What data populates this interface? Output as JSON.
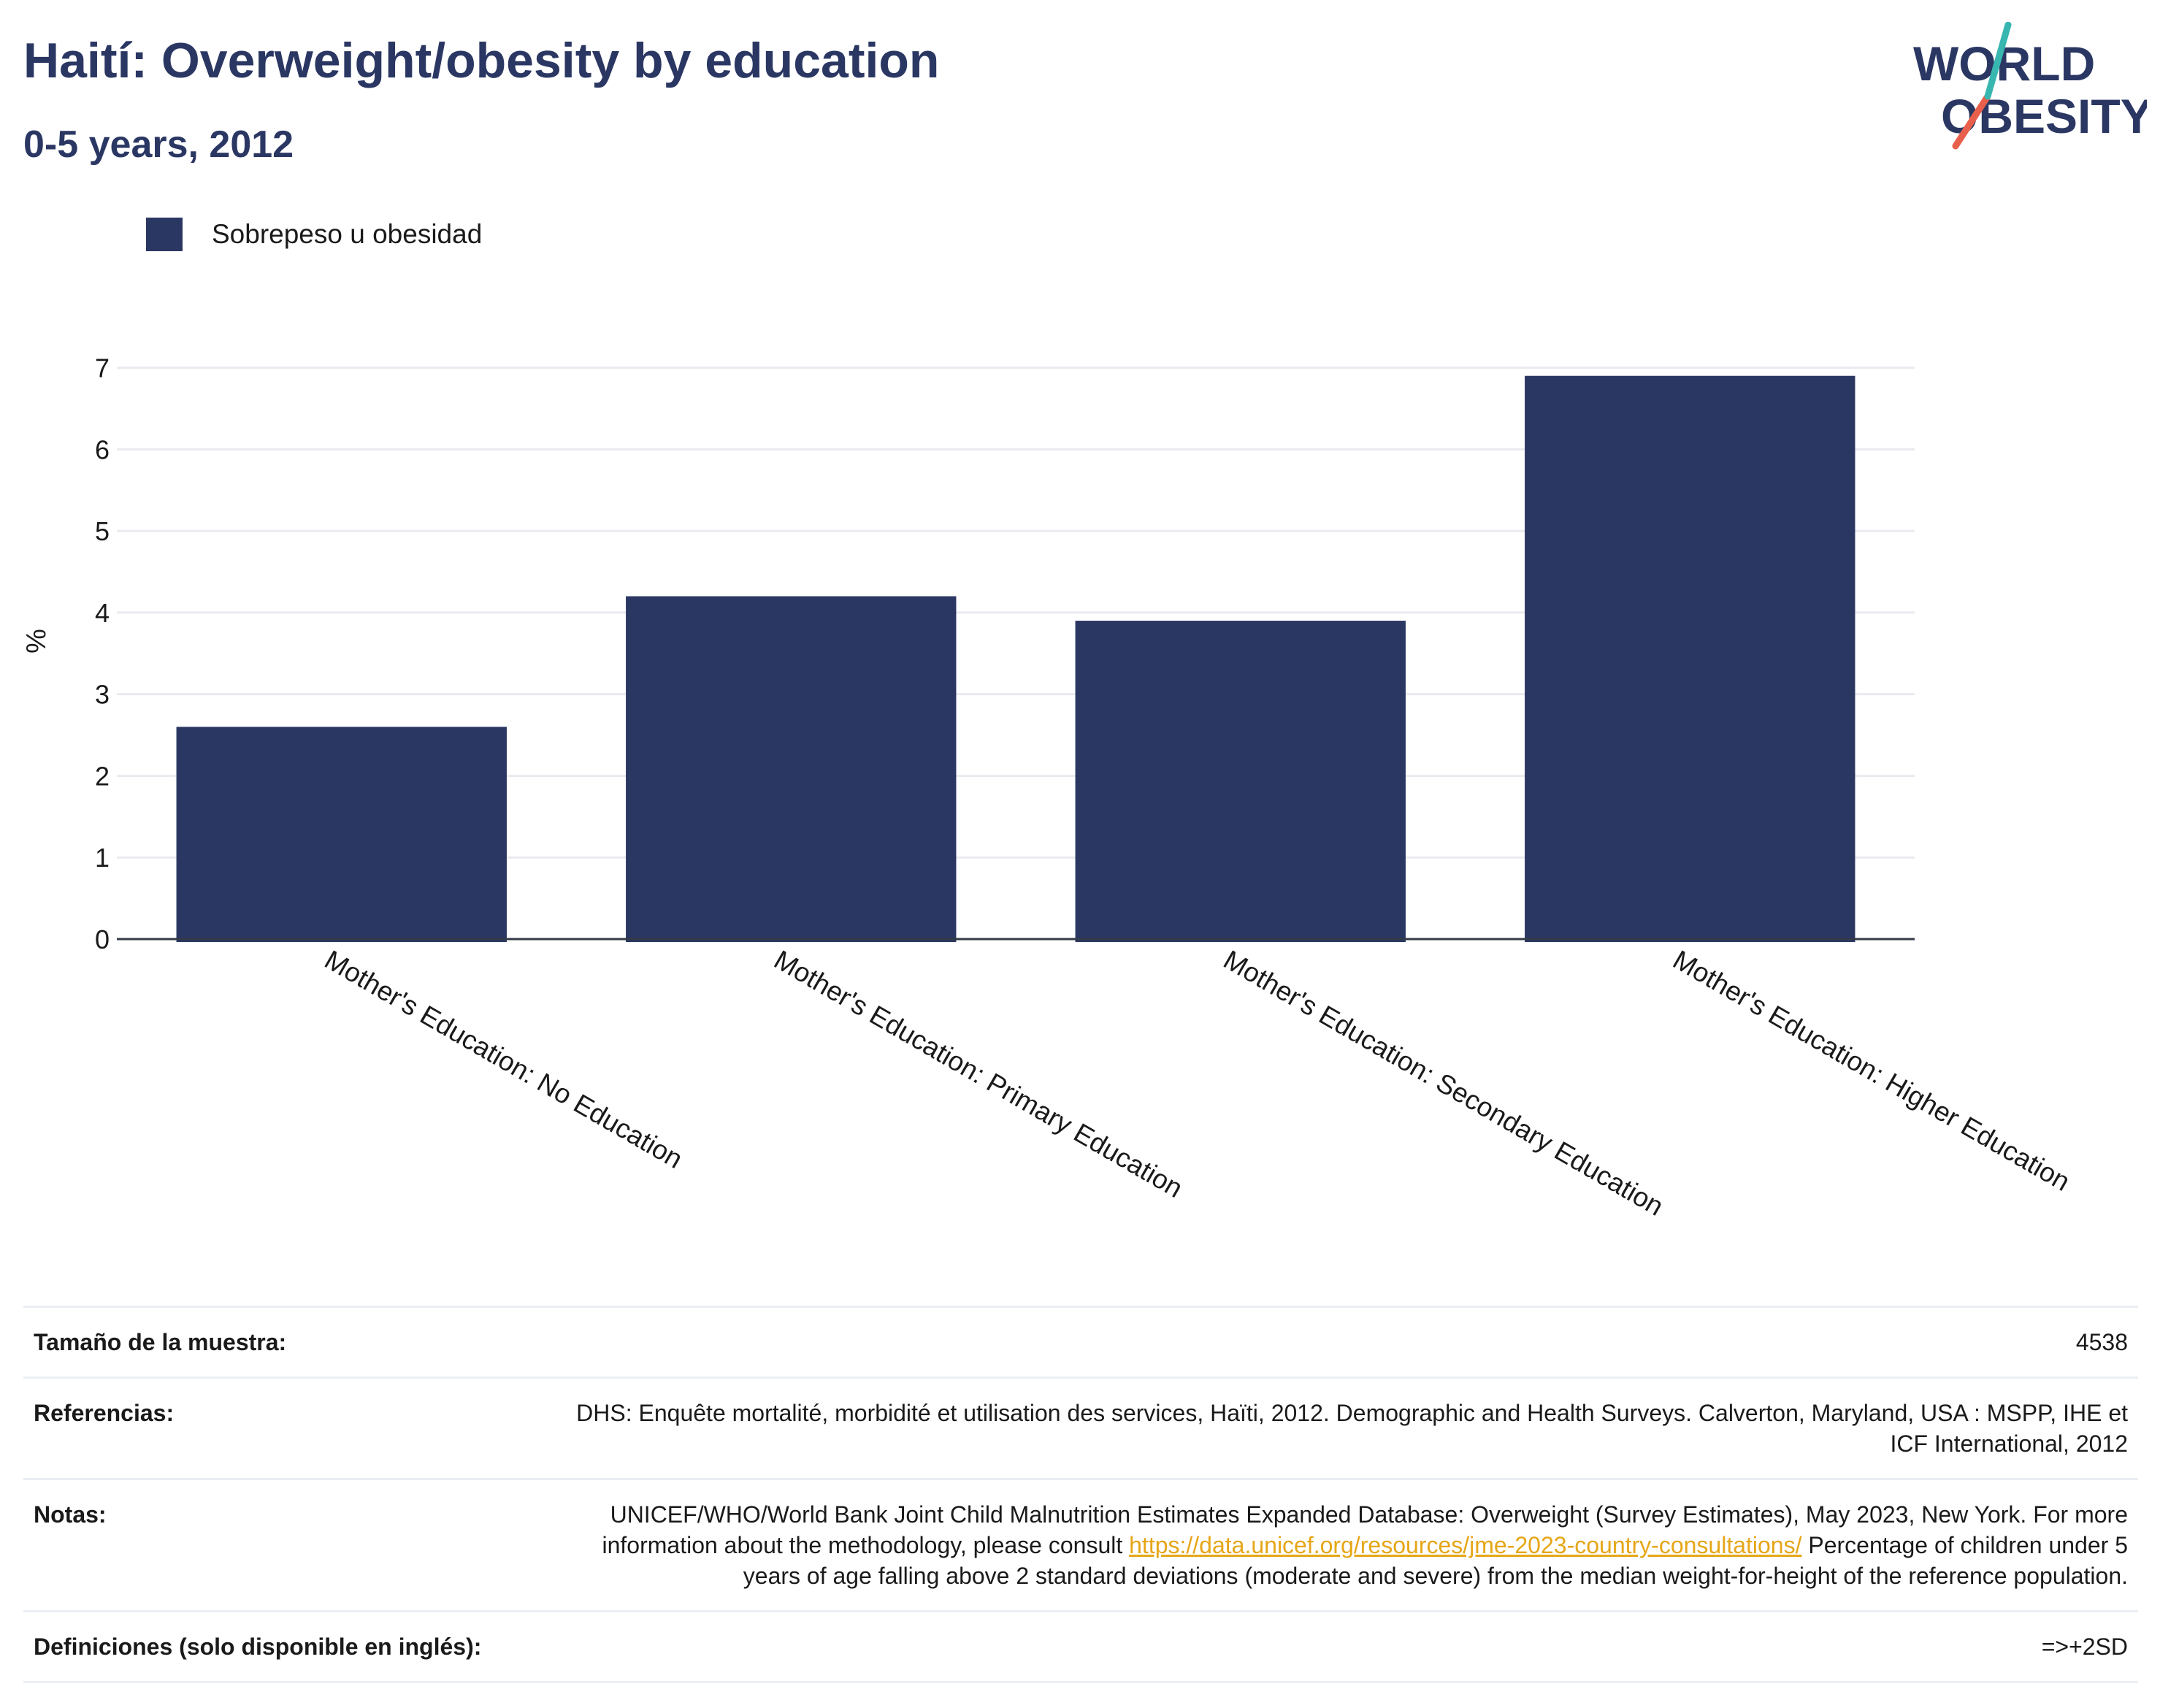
{
  "header": {
    "title": "Haití: Overweight/obesity by education",
    "subtitle": "0-5 years, 2012"
  },
  "logo": {
    "line1": "WORLD",
    "line2": "OBESITY"
  },
  "legend": {
    "label": "Sobrepeso u obesidad",
    "color": "#2b3763"
  },
  "chart_data": {
    "type": "bar",
    "categories": [
      "Mother's Education: No Education",
      "Mother's Education: Primary Education",
      "Mother's Education: Secondary Education",
      "Mother's Education: Higher Education"
    ],
    "series": [
      {
        "name": "Sobrepeso u obesidad",
        "values": [
          2.6,
          4.2,
          3.9,
          6.9
        ],
        "color": "#2b3763"
      }
    ],
    "ylabel": "%",
    "ylim": [
      0,
      7.3
    ],
    "yticks": [
      0,
      1,
      2,
      3,
      4,
      5,
      6,
      7
    ],
    "grid": true,
    "legend_position": "top-left"
  },
  "info": {
    "sample_label": "Tamaño de la muestra:",
    "sample_value": "4538",
    "refs_label": "Referencias:",
    "refs_value": "DHS: Enquête mortalité, morbidité et utilisation des services, Haïti, 2012. Demographic and Health Surveys. Calverton, Maryland, USA : MSPP, IHE et ICF International, 2012",
    "notes_label": "Notas:",
    "notes_text1": "UNICEF/WHO/World Bank Joint Child Malnutrition Estimates Expanded Database: Overweight (Survey Estimates), May 2023, New York. For more information about the methodology, please consult ",
    "notes_link": "https://data.unicef.org/resources/jme-2023-country-consultations/",
    "notes_text2": " Percentage of children under 5 years of age falling above 2 standard deviations (moderate and severe) from the median weight-for-height of the reference population.",
    "defs_label": "Definiciones (solo disponible en inglés):",
    "defs_value": "=>+2SD"
  }
}
